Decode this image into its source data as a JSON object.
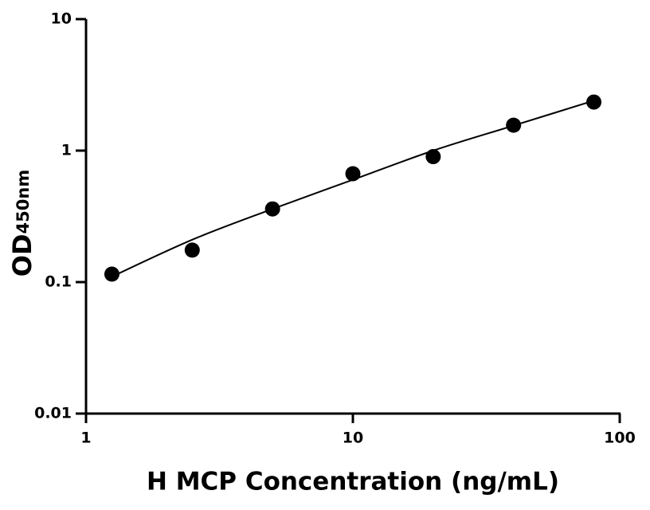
{
  "chart_data": {
    "type": "scatter",
    "log_x": true,
    "log_y": true,
    "grid": false,
    "xlabel": "H MCP Concentration (ng/mL)",
    "ylabel": "OD",
    "ylabel_subscript": "450nm",
    "x": [
      1.25,
      2.5,
      5,
      10,
      20,
      40,
      80
    ],
    "values": [
      0.115,
      0.175,
      0.36,
      0.667,
      0.9,
      1.56,
      2.34
    ],
    "color": "#000000",
    "curve": {
      "x": [
        1.25,
        2.5,
        5,
        10,
        20,
        40,
        80
      ],
      "values": [
        0.11,
        0.21,
        0.36,
        0.6,
        1.0,
        1.55,
        2.4
      ]
    },
    "xlim": [
      1,
      100
    ],
    "xticks": [
      1,
      10,
      100
    ],
    "ylim": [
      0.01,
      10
    ],
    "yticks": [
      0.01,
      0.1,
      1,
      10
    ]
  }
}
